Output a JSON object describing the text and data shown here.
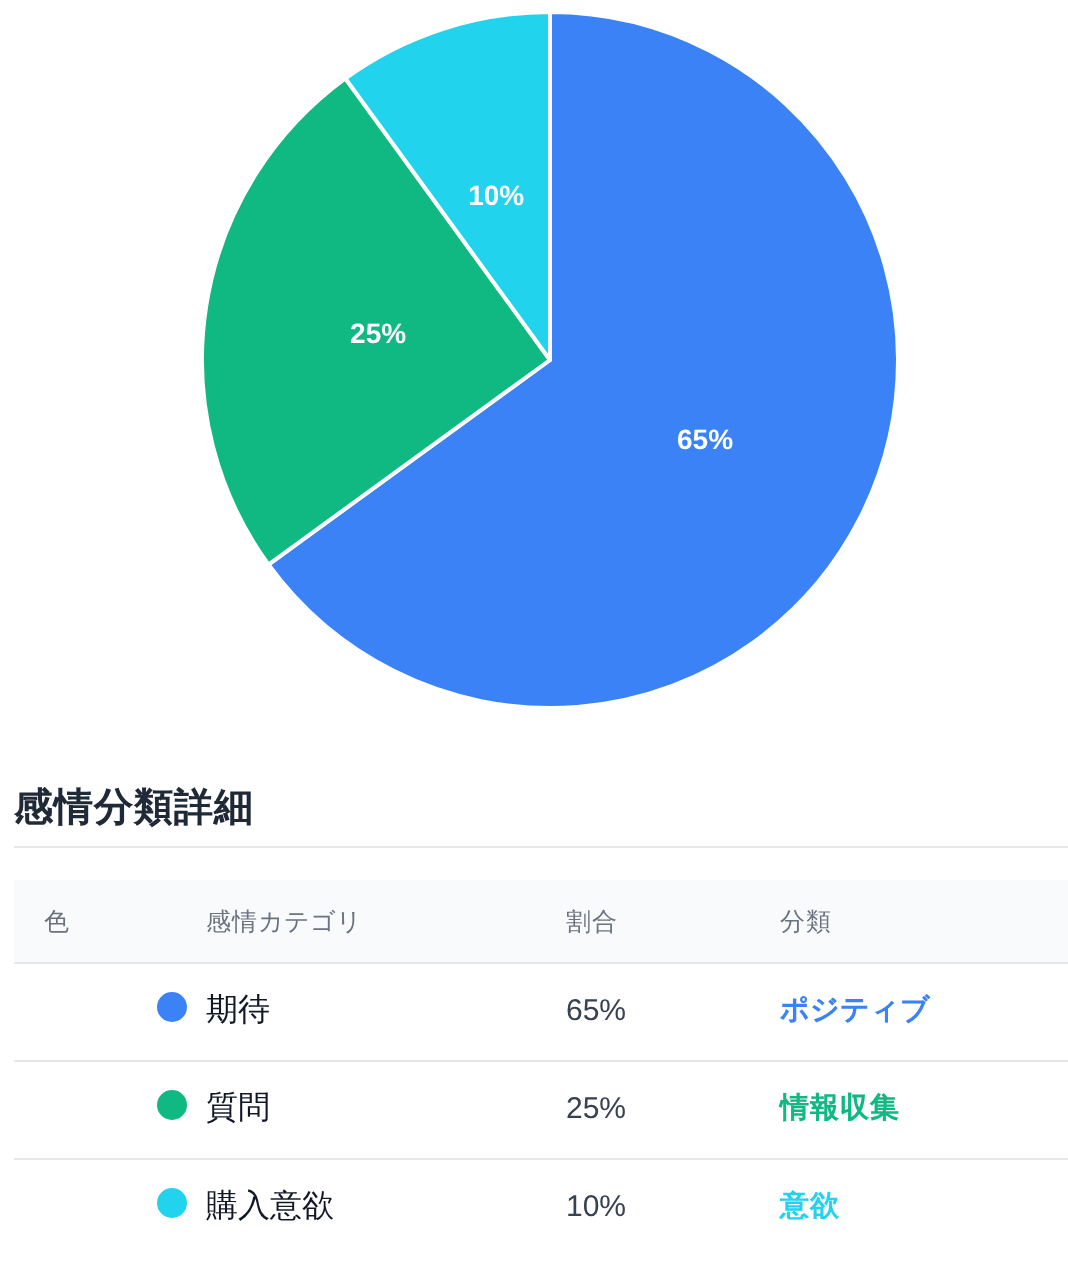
{
  "chart_data": {
    "type": "pie",
    "categories": [
      "期待",
      "質問",
      "購入意欲"
    ],
    "values": [
      65,
      25,
      10
    ],
    "colors": [
      "#3b82f6",
      "#10b981",
      "#22d3ee"
    ],
    "value_labels": [
      "65%",
      "25%",
      "10%"
    ],
    "legend": "bottom",
    "legend_title": "感情分類詳細",
    "annotations": [
      "色",
      "感情カテゴリ",
      "割合",
      "分類",
      "ポジティブ",
      "情報収集",
      "意欲"
    ]
  }
}
